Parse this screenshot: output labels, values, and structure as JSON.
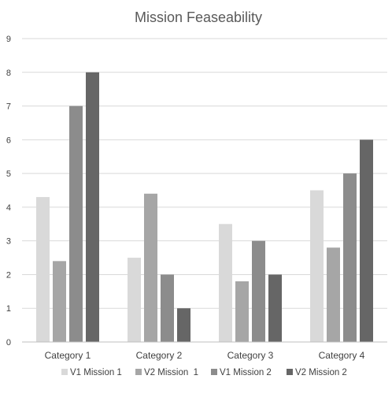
{
  "chart_data": {
    "type": "bar",
    "title": "Mission Feaseability",
    "xlabel": "",
    "ylabel": "",
    "ylim": [
      0,
      9
    ],
    "yticks": [
      0,
      1,
      2,
      3,
      4,
      5,
      6,
      7,
      8,
      9
    ],
    "grid": true,
    "legend_position": "bottom",
    "categories": [
      "Category 1",
      "Category 2",
      "Category 3",
      "Category 4"
    ],
    "series": [
      {
        "name": "V1 Mission 1",
        "color": "#d9d9d9",
        "values": [
          4.3,
          2.5,
          3.5,
          4.5
        ]
      },
      {
        "name": "V2 Mission  1",
        "color": "#a6a6a6",
        "values": [
          2.4,
          4.4,
          1.8,
          2.8
        ]
      },
      {
        "name": "V1 Mission 2",
        "color": "#8c8c8c",
        "values": [
          7,
          2,
          3,
          5
        ]
      },
      {
        "name": "V2 Mission 2",
        "color": "#666666",
        "values": [
          8,
          1,
          2,
          6
        ]
      }
    ]
  }
}
